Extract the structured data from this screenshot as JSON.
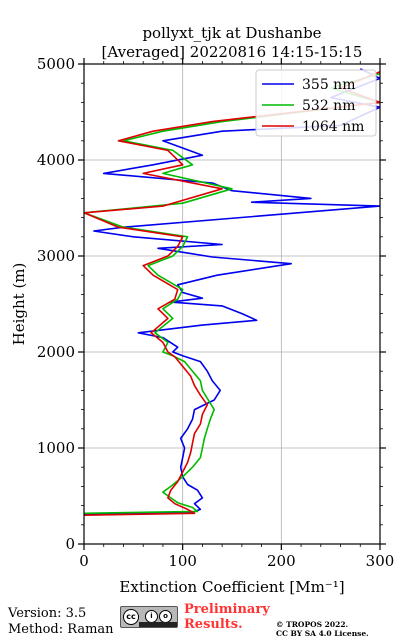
{
  "chart_data": {
    "type": "line",
    "title_line1": "pollyxt_tjk at Dushanbe",
    "title_line2": "[Averaged] 20220816 14:15-15:15",
    "xlabel": "Extinction Coefficient [Mm⁻¹]",
    "ylabel": "Height (m)",
    "xlim": [
      0,
      300
    ],
    "ylim": [
      0,
      5000
    ],
    "x_ticks": [
      0,
      100,
      200,
      300
    ],
    "y_ticks": [
      0,
      1000,
      2000,
      3000,
      4000,
      5000
    ],
    "grid": true,
    "legend_position": "top-right",
    "series": [
      {
        "name": "355 nm",
        "color": "#0000ee",
        "points": [
          [
            0,
            310
          ],
          [
            110,
            330
          ],
          [
            118,
            360
          ],
          [
            112,
            420
          ],
          [
            120,
            480
          ],
          [
            115,
            560
          ],
          [
            105,
            620
          ],
          [
            100,
            700
          ],
          [
            98,
            800
          ],
          [
            100,
            900
          ],
          [
            102,
            1000
          ],
          [
            98,
            1100
          ],
          [
            105,
            1200
          ],
          [
            110,
            1300
          ],
          [
            112,
            1400
          ],
          [
            132,
            1500
          ],
          [
            138,
            1600
          ],
          [
            130,
            1700
          ],
          [
            125,
            1800
          ],
          [
            118,
            1900
          ],
          [
            100,
            1960
          ],
          [
            90,
            2000
          ],
          [
            95,
            2050
          ],
          [
            80,
            2150
          ],
          [
            55,
            2200
          ],
          [
            120,
            2280
          ],
          [
            175,
            2330
          ],
          [
            160,
            2400
          ],
          [
            140,
            2480
          ],
          [
            88,
            2520
          ],
          [
            120,
            2560
          ],
          [
            100,
            2620
          ],
          [
            95,
            2700
          ],
          [
            135,
            2800
          ],
          [
            210,
            2920
          ],
          [
            130,
            2990
          ],
          [
            75,
            3080
          ],
          [
            140,
            3120
          ],
          [
            50,
            3200
          ],
          [
            10,
            3260
          ],
          [
            40,
            3300
          ],
          [
            300,
            3520
          ],
          [
            170,
            3560
          ],
          [
            230,
            3600
          ],
          [
            150,
            3680
          ],
          [
            130,
            3760
          ],
          [
            20,
            3860
          ],
          [
            70,
            3950
          ],
          [
            120,
            4050
          ],
          [
            80,
            4200
          ],
          [
            140,
            4300
          ],
          [
            260,
            4360
          ],
          [
            300,
            4550
          ],
          [
            250,
            4650
          ],
          [
            300,
            4850
          ],
          [
            280,
            4950
          ]
        ]
      },
      {
        "name": "532 nm",
        "color": "#00bb00",
        "points": [
          [
            0,
            320
          ],
          [
            115,
            340
          ],
          [
            110,
            380
          ],
          [
            95,
            430
          ],
          [
            88,
            480
          ],
          [
            80,
            540
          ],
          [
            88,
            600
          ],
          [
            100,
            700
          ],
          [
            110,
            800
          ],
          [
            118,
            900
          ],
          [
            120,
            1000
          ],
          [
            122,
            1100
          ],
          [
            125,
            1200
          ],
          [
            128,
            1300
          ],
          [
            132,
            1400
          ],
          [
            126,
            1500
          ],
          [
            120,
            1600
          ],
          [
            118,
            1700
          ],
          [
            110,
            1800
          ],
          [
            102,
            1900
          ],
          [
            90,
            1960
          ],
          [
            80,
            2000
          ],
          [
            85,
            2100
          ],
          [
            72,
            2200
          ],
          [
            90,
            2350
          ],
          [
            80,
            2450
          ],
          [
            95,
            2550
          ],
          [
            100,
            2650
          ],
          [
            75,
            2800
          ],
          [
            65,
            2900
          ],
          [
            90,
            3000
          ],
          [
            100,
            3100
          ],
          [
            105,
            3200
          ],
          [
            40,
            3300
          ],
          [
            0,
            3450
          ],
          [
            100,
            3550
          ],
          [
            150,
            3700
          ],
          [
            80,
            3860
          ],
          [
            110,
            3950
          ],
          [
            90,
            4100
          ],
          [
            40,
            4200
          ],
          [
            80,
            4300
          ],
          [
            140,
            4400
          ],
          [
            300,
            4600
          ],
          [
            250,
            4750
          ],
          [
            300,
            4900
          ]
        ]
      },
      {
        "name": "1064 nm",
        "color": "#dd0000",
        "points": [
          [
            0,
            300
          ],
          [
            112,
            320
          ],
          [
            105,
            360
          ],
          [
            92,
            420
          ],
          [
            85,
            480
          ],
          [
            88,
            560
          ],
          [
            95,
            650
          ],
          [
            100,
            750
          ],
          [
            105,
            850
          ],
          [
            108,
            950
          ],
          [
            110,
            1050
          ],
          [
            112,
            1150
          ],
          [
            118,
            1250
          ],
          [
            120,
            1350
          ],
          [
            125,
            1450
          ],
          [
            118,
            1550
          ],
          [
            112,
            1650
          ],
          [
            108,
            1750
          ],
          [
            100,
            1850
          ],
          [
            92,
            1950
          ],
          [
            85,
            2000
          ],
          [
            80,
            2100
          ],
          [
            68,
            2200
          ],
          [
            85,
            2350
          ],
          [
            75,
            2450
          ],
          [
            92,
            2550
          ],
          [
            95,
            2650
          ],
          [
            70,
            2800
          ],
          [
            60,
            2900
          ],
          [
            85,
            3000
          ],
          [
            95,
            3100
          ],
          [
            100,
            3200
          ],
          [
            35,
            3300
          ],
          [
            0,
            3450
          ],
          [
            80,
            3520
          ],
          [
            140,
            3700
          ],
          [
            60,
            3860
          ],
          [
            100,
            3950
          ],
          [
            85,
            4100
          ],
          [
            35,
            4200
          ],
          [
            70,
            4300
          ],
          [
            130,
            4400
          ],
          [
            300,
            4600
          ],
          [
            260,
            4750
          ],
          [
            300,
            4920
          ]
        ]
      }
    ]
  },
  "footer": {
    "version": "Version: 3.5",
    "method": "Method: Raman",
    "badge_cc": "cc",
    "badge_by": "i",
    "badge_sa": "o",
    "preliminary_line1": "Preliminary",
    "preliminary_line2": "Results.",
    "copyright_line1": "© TROPOS 2022.",
    "copyright_line2": "CC BY SA 4.0 License."
  }
}
